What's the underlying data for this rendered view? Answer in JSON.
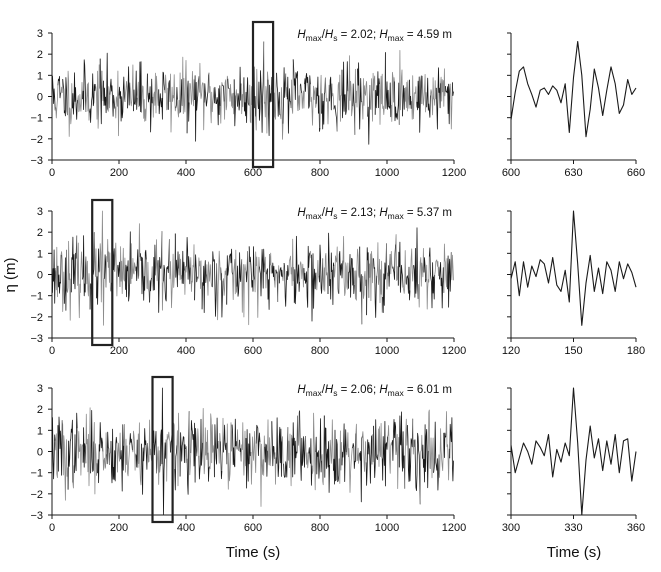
{
  "chart_data": [
    {
      "type": "line",
      "panel": "top-full",
      "annotation": {
        "r1": "H",
        "r1_sub": "max",
        "slash": "/",
        "r2": "H",
        "r2_sub": "s",
        "ratio": " = 2.02; ",
        "h": "H",
        "h_sub": "max",
        "value": " = 4.59 m"
      },
      "xlim": [
        0,
        1200
      ],
      "ylim": [
        -3,
        3
      ],
      "xticks": [
        "0",
        "200",
        "400",
        "600",
        "800",
        "1000",
        "1200"
      ],
      "yticks": [
        "3",
        "2",
        "1",
        "0",
        "−1",
        "−2",
        "−3"
      ],
      "highlight_window": [
        600,
        660
      ],
      "seed": 11,
      "amplitude": 0.75,
      "peaks": [
        [
          632,
          2.6
        ],
        [
          628,
          -1.7
        ],
        [
          603,
          1.4
        ],
        [
          140,
          1.5
        ]
      ]
    },
    {
      "type": "line",
      "panel": "top-zoom",
      "xlim": [
        600,
        660
      ],
      "ylim": [
        -3,
        3
      ],
      "xticks": [
        "600",
        "630",
        "660"
      ],
      "points": [
        [
          600,
          -1.1
        ],
        [
          602,
          0.2
        ],
        [
          604,
          1.2
        ],
        [
          606,
          1.4
        ],
        [
          608,
          0.6
        ],
        [
          610,
          0.1
        ],
        [
          612,
          -0.5
        ],
        [
          614,
          0.3
        ],
        [
          616,
          0.4
        ],
        [
          618,
          0.1
        ],
        [
          620,
          0.5
        ],
        [
          622,
          0.3
        ],
        [
          624,
          -0.3
        ],
        [
          626,
          0.6
        ],
        [
          628,
          -1.7
        ],
        [
          630,
          0.9
        ],
        [
          632,
          2.6
        ],
        [
          634,
          1.0
        ],
        [
          636,
          -1.9
        ],
        [
          638,
          -0.6
        ],
        [
          640,
          1.3
        ],
        [
          642,
          0.4
        ],
        [
          644,
          -0.9
        ],
        [
          646,
          0.3
        ],
        [
          648,
          1.4
        ],
        [
          650,
          0.6
        ],
        [
          652,
          -0.8
        ],
        [
          654,
          -0.4
        ],
        [
          656,
          0.8
        ],
        [
          658,
          0.1
        ],
        [
          660,
          0.4
        ]
      ]
    },
    {
      "type": "line",
      "panel": "middle-full",
      "annotation": {
        "r1": "H",
        "r1_sub": "max",
        "slash": "/",
        "r2": "H",
        "r2_sub": "s",
        "ratio": " = 2.13; ",
        "h": "H",
        "h_sub": "max",
        "value": " = 5.37 m"
      },
      "xlim": [
        0,
        1200
      ],
      "ylim": [
        -3,
        3
      ],
      "xticks": [
        "0",
        "200",
        "400",
        "600",
        "800",
        "1000",
        "1200"
      ],
      "yticks": [
        "3",
        "2",
        "1",
        "0",
        "−1",
        "−2",
        "−3"
      ],
      "highlight_window": [
        120,
        180
      ],
      "seed": 23,
      "amplitude": 0.8,
      "peaks": [
        [
          150,
          3.0
        ],
        [
          153,
          -2.4
        ],
        [
          147,
          -1.3
        ],
        [
          870,
          1.8
        ],
        [
          455,
          -1.8
        ]
      ]
    },
    {
      "type": "line",
      "panel": "middle-zoom",
      "xlim": [
        120,
        180
      ],
      "ylim": [
        -3,
        3
      ],
      "xticks": [
        "120",
        "150",
        "180"
      ],
      "points": [
        [
          120,
          -0.2
        ],
        [
          122,
          0.6
        ],
        [
          124,
          -1.0
        ],
        [
          126,
          0.6
        ],
        [
          128,
          -0.6
        ],
        [
          130,
          0.4
        ],
        [
          132,
          -0.1
        ],
        [
          134,
          0.7
        ],
        [
          136,
          0.5
        ],
        [
          138,
          -0.4
        ],
        [
          140,
          0.8
        ],
        [
          142,
          -0.5
        ],
        [
          144,
          -0.8
        ],
        [
          146,
          0.2
        ],
        [
          148,
          -1.3
        ],
        [
          150,
          3.0
        ],
        [
          152,
          0.5
        ],
        [
          154,
          -2.4
        ],
        [
          156,
          -0.4
        ],
        [
          158,
          0.9
        ],
        [
          160,
          -0.8
        ],
        [
          162,
          0.3
        ],
        [
          164,
          -0.9
        ],
        [
          166,
          0.6
        ],
        [
          168,
          0.2
        ],
        [
          170,
          -0.8
        ],
        [
          172,
          0.6
        ],
        [
          174,
          -0.2
        ],
        [
          176,
          0.5
        ],
        [
          178,
          0.1
        ],
        [
          180,
          -0.6
        ]
      ]
    },
    {
      "type": "line",
      "panel": "bottom-full",
      "annotation": {
        "r1": "H",
        "r1_sub": "max",
        "slash": "/",
        "r2": "H",
        "r2_sub": "s",
        "ratio": " = 2.06; ",
        "h": "H",
        "h_sub": "max",
        "value": " = 6.01 m"
      },
      "xlim": [
        0,
        1200
      ],
      "ylim": [
        -3,
        3
      ],
      "xticks": [
        "0",
        "200",
        "400",
        "600",
        "800",
        "1000",
        "1200"
      ],
      "yticks": [
        "3",
        "2",
        "1",
        "0",
        "−1",
        "−2",
        "−3"
      ],
      "highlight_window": [
        300,
        360
      ],
      "seed": 37,
      "amplitude": 0.85,
      "peaks": [
        [
          330,
          3.0
        ],
        [
          333,
          -3.0
        ],
        [
          40,
          -2.3
        ],
        [
          440,
          -1.3
        ]
      ]
    },
    {
      "type": "line",
      "panel": "bottom-zoom",
      "xlim": [
        300,
        360
      ],
      "ylim": [
        -3,
        3
      ],
      "xticks": [
        "300",
        "330",
        "360"
      ],
      "points": [
        [
          300,
          0.3
        ],
        [
          302,
          -1.0
        ],
        [
          304,
          -0.3
        ],
        [
          306,
          0.4
        ],
        [
          308,
          0.0
        ],
        [
          310,
          -0.6
        ],
        [
          312,
          0.5
        ],
        [
          314,
          0.2
        ],
        [
          316,
          -0.2
        ],
        [
          318,
          0.8
        ],
        [
          320,
          -1.2
        ],
        [
          322,
          0.1
        ],
        [
          324,
          -0.5
        ],
        [
          326,
          0.4
        ],
        [
          328,
          -0.2
        ],
        [
          330,
          3.0
        ],
        [
          332,
          0.4
        ],
        [
          334,
          -3.0
        ],
        [
          336,
          -0.4
        ],
        [
          338,
          1.2
        ],
        [
          340,
          -0.3
        ],
        [
          342,
          0.6
        ],
        [
          344,
          -0.9
        ],
        [
          346,
          0.5
        ],
        [
          348,
          -0.6
        ],
        [
          350,
          0.8
        ],
        [
          352,
          -1.0
        ],
        [
          354,
          0.5
        ],
        [
          356,
          0.6
        ],
        [
          358,
          -1.4
        ],
        [
          360,
          0.0
        ]
      ]
    }
  ],
  "ylabel": "η (m)",
  "xlabel_left": "Time (s)",
  "xlabel_right": "Time (s)",
  "colors": {
    "primary": "#1a1a1a",
    "secondary": "#8c8c8c",
    "frame": "#222222"
  }
}
